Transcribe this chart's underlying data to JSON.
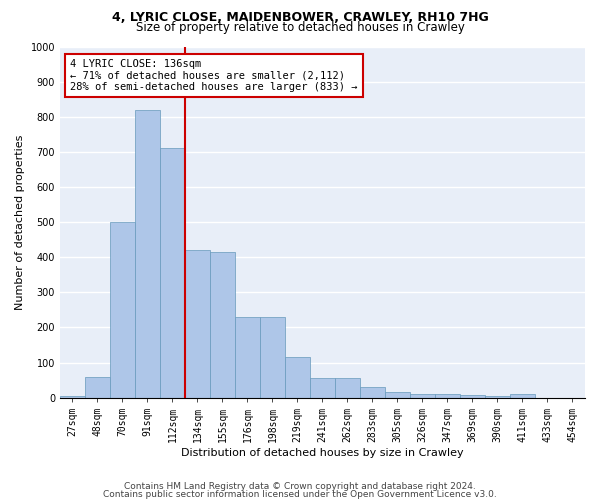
{
  "title1": "4, LYRIC CLOSE, MAIDENBOWER, CRAWLEY, RH10 7HG",
  "title2": "Size of property relative to detached houses in Crawley",
  "xlabel": "Distribution of detached houses by size in Crawley",
  "ylabel": "Number of detached properties",
  "bin_labels": [
    "27sqm",
    "48sqm",
    "70sqm",
    "91sqm",
    "112sqm",
    "134sqm",
    "155sqm",
    "176sqm",
    "198sqm",
    "219sqm",
    "241sqm",
    "262sqm",
    "283sqm",
    "305sqm",
    "326sqm",
    "347sqm",
    "369sqm",
    "390sqm",
    "411sqm",
    "433sqm",
    "454sqm"
  ],
  "bar_values": [
    5,
    60,
    500,
    820,
    710,
    420,
    415,
    230,
    230,
    115,
    55,
    55,
    30,
    15,
    10,
    10,
    8,
    5,
    10,
    0,
    0
  ],
  "bar_color": "#aec6e8",
  "bar_edge_color": "#6699bb",
  "bg_color": "#e8eef8",
  "grid_color": "#ffffff",
  "vline_x_idx": 5,
  "vline_color": "#cc0000",
  "annotation_text": "4 LYRIC CLOSE: 136sqm\n← 71% of detached houses are smaller (2,112)\n28% of semi-detached houses are larger (833) →",
  "annotation_box_color": "#ffffff",
  "annotation_box_edge": "#cc0000",
  "ylim": [
    0,
    1000
  ],
  "yticks": [
    0,
    100,
    200,
    300,
    400,
    500,
    600,
    700,
    800,
    900,
    1000
  ],
  "footer1": "Contains HM Land Registry data © Crown copyright and database right 2024.",
  "footer2": "Contains public sector information licensed under the Open Government Licence v3.0.",
  "title1_fontsize": 9,
  "title2_fontsize": 8.5,
  "xlabel_fontsize": 8,
  "ylabel_fontsize": 8,
  "tick_fontsize": 7,
  "annotation_fontsize": 7.5,
  "footer_fontsize": 6.5
}
